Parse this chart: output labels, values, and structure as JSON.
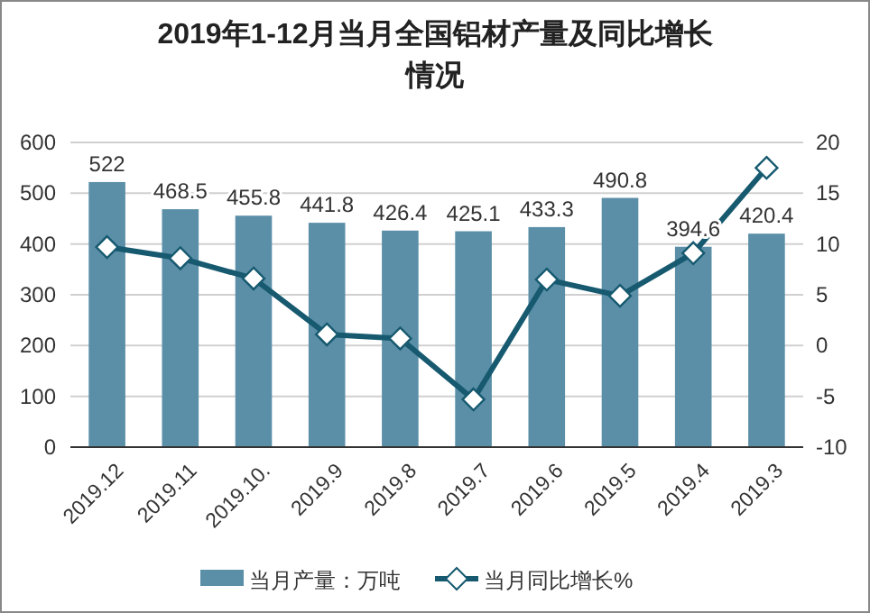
{
  "chart_data": {
    "type": "bar",
    "title": "2019年1-12月当月全国铝材产量及同比增长情况",
    "categories": [
      "2019.12",
      "2019.11",
      "2019.10.",
      "2019.9",
      "2019.8",
      "2019.7",
      "2019.6",
      "2019.5",
      "2019.4",
      "2019.3"
    ],
    "series": [
      {
        "name": "当月产量：万吨",
        "color": "#5b8fa8",
        "values": [
          522,
          468.5,
          455.8,
          441.8,
          426.4,
          425.1,
          433.3,
          490.8,
          394.6,
          420.4
        ],
        "value_labels": [
          "522",
          "468.5",
          "455.8",
          "441.8",
          "426.4",
          "425.1",
          "433.3",
          "490.8",
          "394.6",
          "420.4"
        ]
      },
      {
        "name": "当月同比增长%",
        "type": "line",
        "axis": "y2",
        "color": "#175a70",
        "marker": "diamond",
        "values": [
          9.7,
          8.6,
          6.6,
          1.1,
          0.7,
          -5.3,
          6.5,
          4.9,
          9.1,
          17.5
        ]
      }
    ],
    "ylim": [
      0,
      600
    ],
    "yticks": [
      0,
      100,
      200,
      300,
      400,
      500,
      600
    ],
    "y2lim": [
      -10,
      20
    ],
    "y2ticks": [
      -10,
      -5,
      0,
      5,
      10,
      15,
      20
    ],
    "grid": "y",
    "legend": "bottom"
  }
}
